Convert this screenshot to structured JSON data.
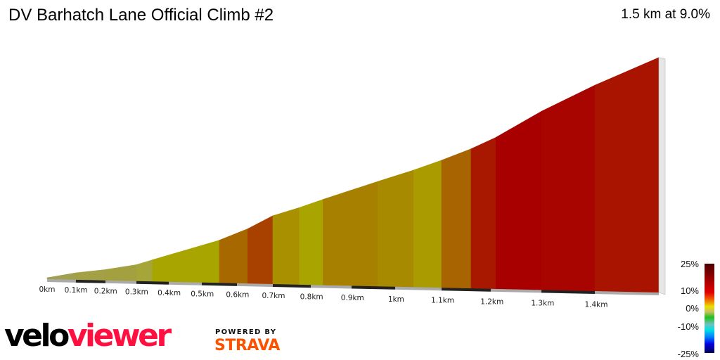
{
  "header": {
    "title": "DV Barhatch Lane Official Climb #2",
    "summary": "1.5 km at 9.0%"
  },
  "chart_data": {
    "type": "area",
    "title": "DV Barhatch Lane Official Climb #2",
    "xlabel": "",
    "ylabel": "",
    "x_unit": "km",
    "xlim": [
      0,
      1.5
    ],
    "x_ticks": [
      "0km",
      "0.1km",
      "0.2km",
      "0.3km",
      "0.4km",
      "0.5km",
      "0.6km",
      "0.7km",
      "0.8km",
      "0.9km",
      "1km",
      "1.1km",
      "1.2km",
      "1.3km",
      "1.4km"
    ],
    "distance_km": [
      0,
      0.1,
      0.2,
      0.3,
      0.35,
      0.55,
      0.63,
      0.7,
      0.77,
      0.83,
      0.96,
      1.04,
      1.1,
      1.16,
      1.21,
      1.3,
      1.4,
      1.5
    ],
    "elevation_gain_m": [
      0,
      3,
      5,
      8,
      11,
      23,
      30,
      38,
      43,
      48,
      59,
      66,
      72,
      79,
      86,
      102,
      118,
      135
    ],
    "segment_colors": [
      "#a0a050",
      "#a3a045",
      "#a3a040",
      "#a5a53a",
      "#a8a400",
      "#a86800",
      "#a84000",
      "#a89000",
      "#aaa400",
      "#a88000",
      "#a88a00",
      "#aa9c00",
      "#a86400",
      "#a81800",
      "#a80000",
      "#a80400",
      "#a81400"
    ],
    "grid": false,
    "legend": {
      "placement": "bottom-right",
      "labels": [
        "25%",
        "10%",
        "0%",
        "-10%",
        "-25%"
      ]
    }
  },
  "branding": {
    "logo_part1": "velo",
    "logo_part2": "viewer",
    "powered_by": "POWERED BY",
    "strava": "STRAVA"
  }
}
